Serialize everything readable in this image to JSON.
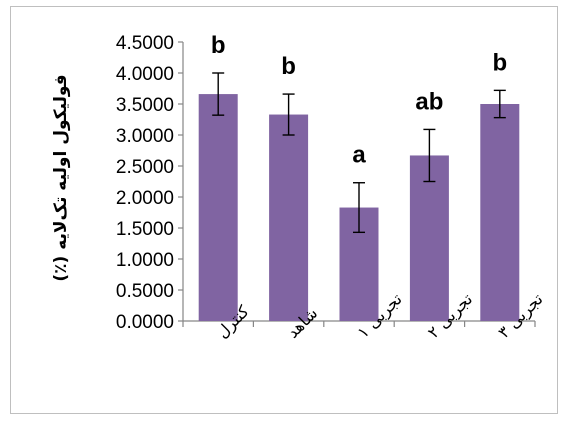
{
  "chart_data": {
    "type": "bar",
    "title": "",
    "xlabel": "",
    "ylabel": "فولیکول اولیه تک‌لایه (٪)",
    "ylim": [
      0,
      4.5
    ],
    "yticks": [
      "0.0000",
      "0.5000",
      "1.0000",
      "1.5000",
      "2.0000",
      "2.5000",
      "3.0000",
      "3.5000",
      "4.0000",
      "4.5000"
    ],
    "categories": [
      "کنترل",
      "شاهد",
      "تجربی ۱",
      "تجربی ۲",
      "تجربی ۳"
    ],
    "values": [
      3.66,
      3.33,
      1.83,
      2.67,
      3.5
    ],
    "errors": [
      0.34,
      0.33,
      0.4,
      0.42,
      0.22
    ],
    "significance": [
      "b",
      "b",
      "a",
      "ab",
      "b"
    ],
    "bar_color": "#8064a2",
    "grid": false,
    "legend": "none"
  }
}
